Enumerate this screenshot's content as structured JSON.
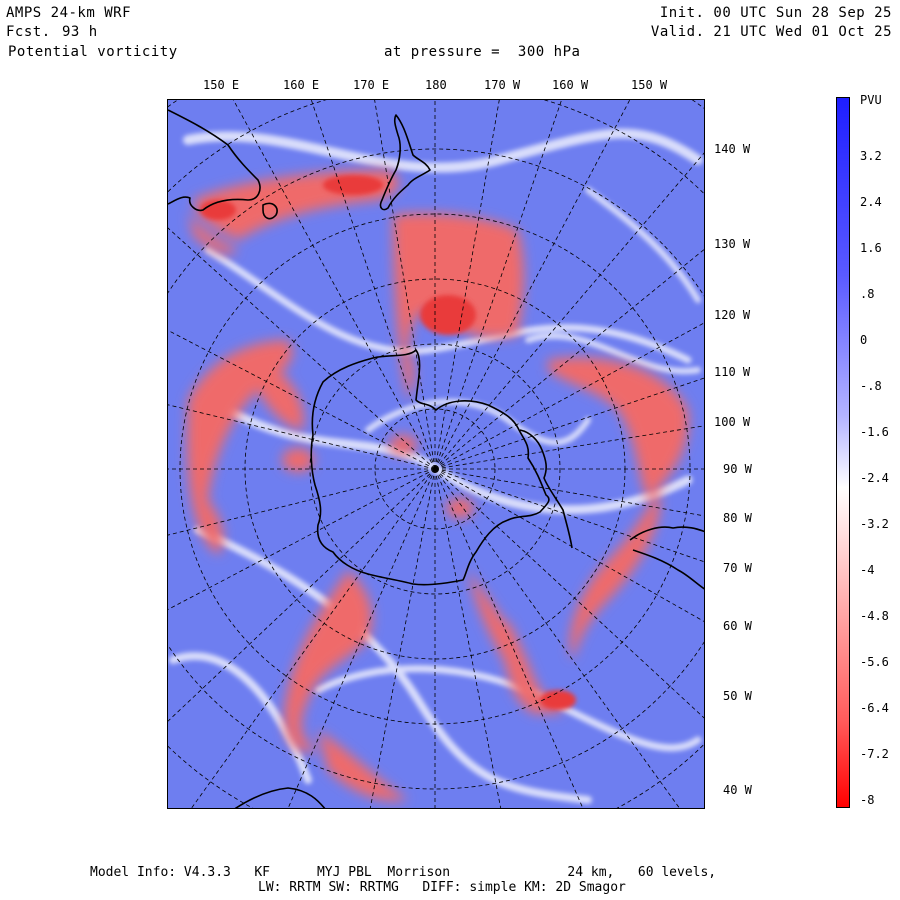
{
  "header": {
    "model": "AMPS 24-km WRF",
    "fcst_label": "Fcst.",
    "fcst_value": "93 h",
    "field": "Potential vorticity",
    "level": "at pressure =  300 hPa",
    "init": "Init. 00 UTC Sun 28 Sep 25",
    "valid": "Valid. 21 UTC Wed 01 Oct 25"
  },
  "longitude_labels_top": [
    "150 E",
    "160 E",
    "170 E",
    "180",
    "170 W",
    "160 W",
    "150 W"
  ],
  "longitude_labels_right": [
    "140 W",
    "130 W",
    "120 W",
    "110 W",
    "100 W",
    "90 W",
    "80 W",
    "70 W",
    "60 W",
    "50 W",
    "40 W"
  ],
  "colorbar": {
    "unit": "PVU",
    "ticks": [
      "3.2",
      "2.4",
      "1.6",
      ".8",
      "0",
      "-.8",
      "-1.6",
      "-2.4",
      "-3.2",
      "-4",
      "-4.8",
      "-5.6",
      "-6.4",
      "-7.2",
      "-8"
    ],
    "colors": {
      "high": "#1e1eff",
      "mid": "#ffffff",
      "low": "#ff0000"
    }
  },
  "footer": {
    "line1": "Model Info: V4.3.3   KF      MYJ PBL  Morrison               24 km,   60 levels,",
    "line2": "LW: RRTM SW: RRTMG   DIFF: simple KM: 2D Smagor"
  },
  "colors": {
    "field_background": "#6f7ff0",
    "positive_pv": "#ee6a6a",
    "coastline": "#000000",
    "graticule": "#000000"
  }
}
